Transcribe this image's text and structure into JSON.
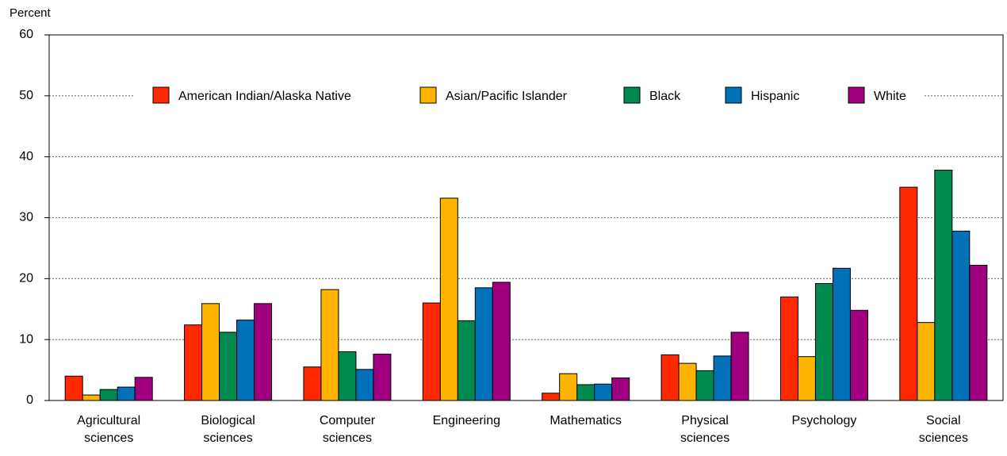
{
  "chart_data": {
    "type": "bar",
    "y_label": "Percent",
    "categories": [
      "Agricultural sciences",
      "Biological sciences",
      "Computer sciences",
      "Engineering",
      "Mathematics",
      "Physical sciences",
      "Psychology",
      "Social sciences"
    ],
    "series": [
      {
        "name": "American Indian/Alaska Native",
        "color": "#ff2a00",
        "values": [
          4.0,
          12.4,
          5.5,
          16.0,
          1.2,
          7.5,
          17.0,
          35.0
        ]
      },
      {
        "name": "Asian/Pacific Islander",
        "color": "#ffb400",
        "values": [
          0.9,
          15.9,
          18.2,
          33.2,
          4.4,
          6.1,
          7.2,
          12.8
        ]
      },
      {
        "name": "Black",
        "color": "#00894e",
        "values": [
          1.8,
          11.2,
          8.0,
          13.1,
          2.6,
          4.9,
          19.2,
          37.8
        ]
      },
      {
        "name": "Hispanic",
        "color": "#0070b8",
        "values": [
          2.2,
          13.2,
          5.1,
          18.5,
          2.7,
          7.3,
          21.7,
          27.8
        ]
      },
      {
        "name": "White",
        "color": "#a0007f",
        "values": [
          3.8,
          15.9,
          7.6,
          19.4,
          3.7,
          11.2,
          14.8,
          22.2
        ]
      }
    ],
    "ylim": [
      0,
      60
    ],
    "yticks": [
      0,
      10,
      20,
      30,
      40,
      50,
      60
    ],
    "grid": true,
    "legend": "top"
  }
}
